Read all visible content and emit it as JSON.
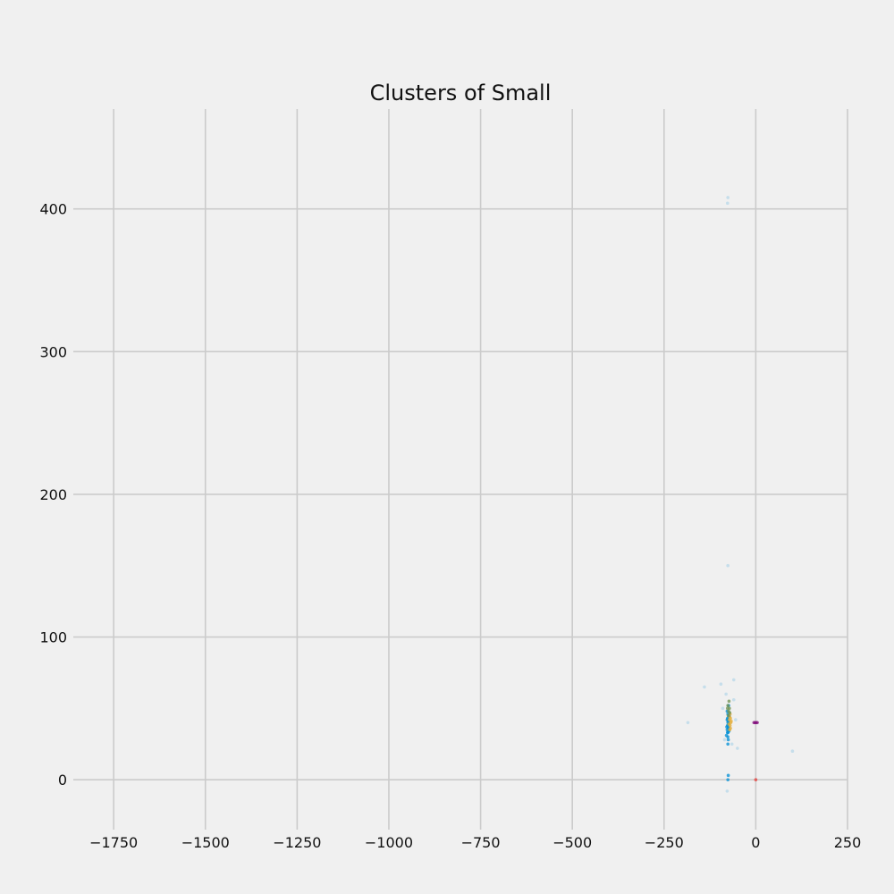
{
  "chart_data": {
    "type": "scatter",
    "title": "Clusters of Small",
    "xlabel": "",
    "ylabel": "",
    "xlim": [
      -1860,
      250
    ],
    "ylim": [
      -35,
      470
    ],
    "xticks": [
      -1750,
      -1500,
      -1250,
      -1000,
      -750,
      -500,
      -250,
      0,
      250
    ],
    "xtick_labels": [
      "−1750",
      "−1500",
      "−1250",
      "−1000",
      "−750",
      "−500",
      "−250",
      "0",
      "250"
    ],
    "yticks": [
      0,
      100,
      200,
      300,
      400
    ],
    "ytick_labels": [
      "0",
      "100",
      "200",
      "300",
      "400"
    ],
    "grid": true,
    "legend": "none",
    "colors": {
      "background": "#f0f0f0",
      "grid": "#cbcbcb",
      "cluster_blue": "#008fd5",
      "cluster_orange": "#fc4f30",
      "cluster_yellow": "#e5ae38",
      "cluster_green": "#6d904f",
      "cluster_purple": "#810f7c",
      "cluster_red": "#e53935"
    },
    "series": [
      {
        "color": "#008fd5",
        "points": [
          [
            -76,
            30
          ],
          [
            -76,
            33
          ],
          [
            -75,
            36
          ],
          [
            -77,
            38
          ],
          [
            -76,
            40
          ],
          [
            -78,
            42
          ],
          [
            -74,
            44
          ],
          [
            -76,
            46
          ],
          [
            -78,
            35
          ],
          [
            -74,
            39
          ],
          [
            -75,
            41
          ],
          [
            -77,
            43
          ],
          [
            -75,
            28
          ],
          [
            -79,
            37
          ],
          [
            -73,
            34
          ],
          [
            -76,
            25
          ],
          [
            -75,
            3
          ],
          [
            -76,
            0
          ],
          [
            -78,
            48
          ],
          [
            -74,
            52
          ],
          [
            -80,
            31
          ],
          [
            -72,
            45
          ],
          [
            -74,
            37
          ],
          [
            -77,
            33
          ]
        ]
      },
      {
        "color": "#e5ae38",
        "points": [
          [
            -70,
            38
          ],
          [
            -68,
            40
          ],
          [
            -72,
            42
          ],
          [
            -71,
            44
          ],
          [
            -69,
            36
          ],
          [
            -70,
            46
          ],
          [
            -67,
            41
          ],
          [
            -73,
            39
          ],
          [
            -69,
            43
          ],
          [
            -71,
            35
          ]
        ]
      },
      {
        "color": "#6d904f",
        "points": [
          [
            -74,
            48
          ],
          [
            -72,
            50
          ],
          [
            -76,
            52
          ],
          [
            -73,
            55
          ],
          [
            -75,
            45
          ],
          [
            -71,
            47
          ],
          [
            -77,
            50
          ]
        ]
      },
      {
        "color": "#810f7c",
        "points": [
          [
            -5,
            40
          ],
          [
            -2,
            40
          ],
          [
            1,
            40
          ],
          [
            4,
            40
          ]
        ]
      },
      {
        "color": "#e53935",
        "points": [
          [
            0,
            0
          ]
        ]
      },
      {
        "color": "#b8d8ea",
        "points": [
          [
            -76,
            408
          ],
          [
            -77,
            404
          ],
          [
            -76,
            150
          ],
          [
            -95,
            67
          ],
          [
            -60,
            70
          ],
          [
            -185,
            40
          ],
          [
            -140,
            65
          ],
          [
            -50,
            22
          ],
          [
            -60,
            56
          ],
          [
            -85,
            28
          ],
          [
            -90,
            50
          ],
          [
            -55,
            42
          ],
          [
            100,
            20
          ],
          [
            -78,
            -8
          ],
          [
            -81,
            60
          ],
          [
            -65,
            25
          ]
        ]
      }
    ]
  }
}
